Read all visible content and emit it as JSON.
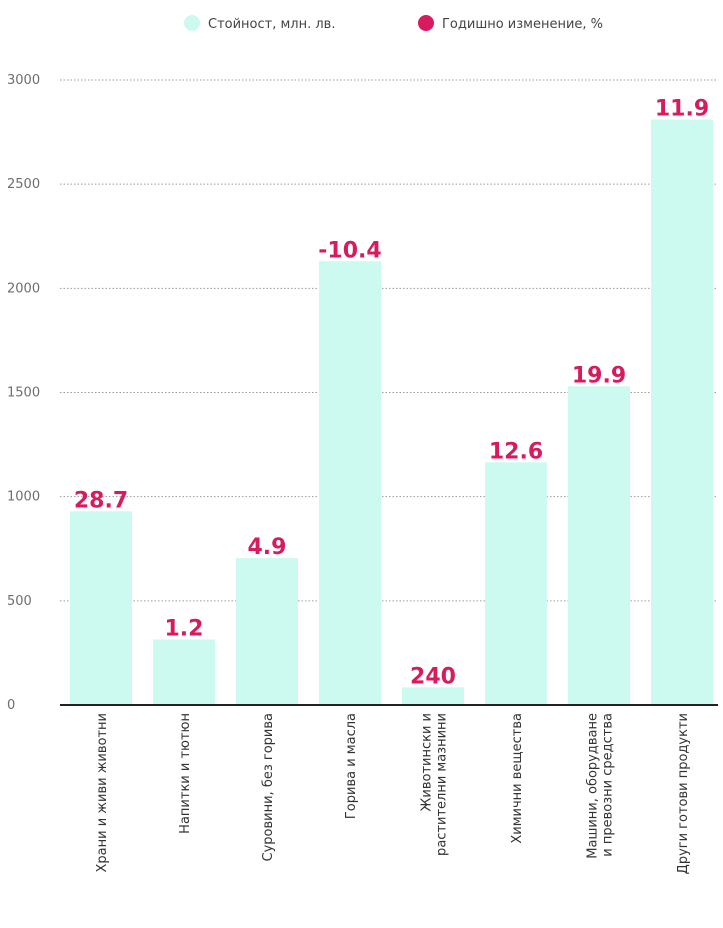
{
  "legend": {
    "value_label": "Стойност, млн. лв.",
    "change_label": "Годишно изменение, %"
  },
  "colors": {
    "bar": "#ccfaf1",
    "change": "#d81b5e",
    "grid": "#9a9a9a",
    "axis": "#222222"
  },
  "chart_data": {
    "type": "bar",
    "categories": [
      [
        "Храни и живи животни"
      ],
      [
        "Напитки и тютюн"
      ],
      [
        "Суровини, без горива"
      ],
      [
        "Горива и масла"
      ],
      [
        "Животински и",
        "растителни мазнини"
      ],
      [
        "Химични вещества"
      ],
      [
        "Машини, оборудване",
        "и превозни средства"
      ],
      [
        "Други готови продукти"
      ]
    ],
    "series": [
      {
        "name": "Стойност, млн. лв.",
        "values": [
          930,
          315,
          705,
          2130,
          85,
          1165,
          1530,
          2810
        ]
      },
      {
        "name": "Годишно изменение, %",
        "labels": [
          "28.7",
          "1.2",
          "4.9",
          "-10.4",
          "240",
          "12.6",
          "19.9",
          "11.9"
        ]
      }
    ],
    "yticks": [
      0,
      500,
      1000,
      1500,
      2000,
      2500,
      3000
    ],
    "ylim": [
      0,
      3000
    ],
    "grid": true,
    "legend_position": "top"
  }
}
